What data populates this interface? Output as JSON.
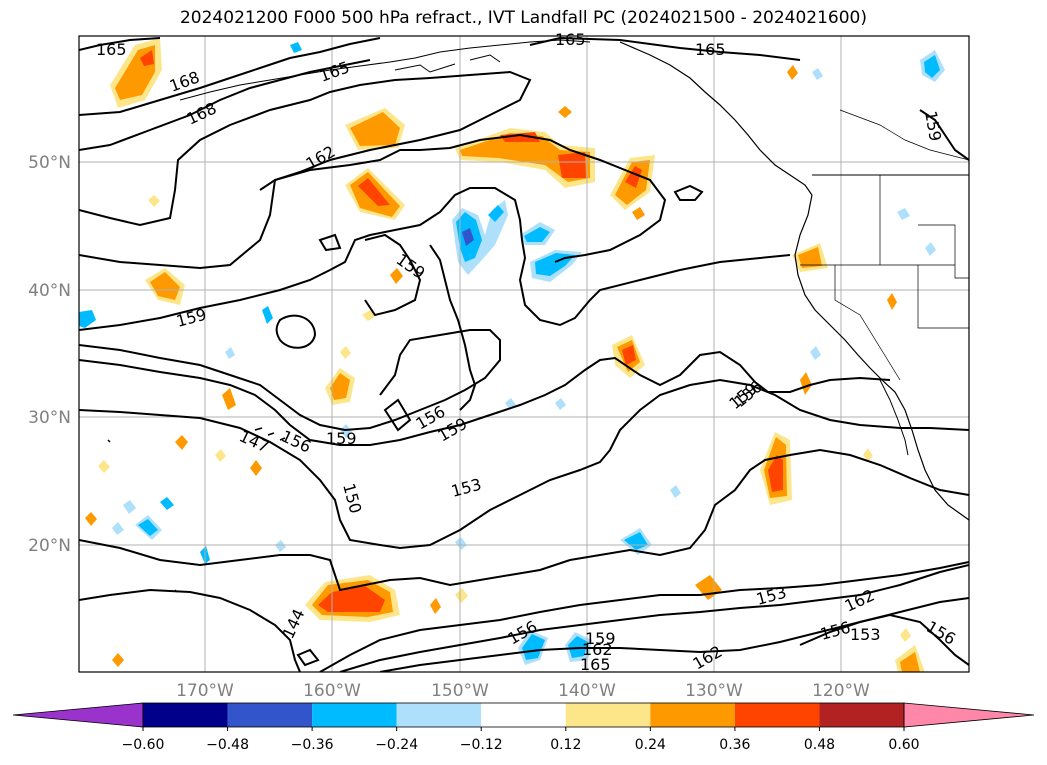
{
  "title": "2024021200 F000 500 hPa refract., IVT Landfall PC (2024021500 - 2024021600)",
  "axes": {
    "lat_labels": [
      "50°N",
      "40°N",
      "30°N",
      "20°N"
    ],
    "lon_labels": [
      "170°W",
      "160°W",
      "150°W",
      "140°W",
      "130°W",
      "120°W"
    ]
  },
  "contour_labels": [
    "165",
    "168",
    "168",
    "165",
    "162",
    "165",
    "165",
    "159",
    "159",
    "159",
    "159",
    "147",
    "156",
    "159",
    "156",
    "159",
    "153",
    "150",
    "156",
    "153",
    "162",
    "156",
    "153",
    "156",
    "144",
    "156",
    "159",
    "162",
    "165",
    "162"
  ],
  "colorbar": {
    "ticks": [
      "−0.60",
      "−0.48",
      "−0.36",
      "−0.24",
      "−0.12",
      "0.12",
      "0.24",
      "0.36",
      "0.48",
      "0.60"
    ],
    "colors": [
      "#9933cc",
      "#00008b",
      "#3355cc",
      "#00bbff",
      "#aee0fb",
      "#ffffff",
      "#fde68a",
      "#ff9900",
      "#ff4400",
      "#b22222",
      "#ff88aa"
    ]
  }
}
